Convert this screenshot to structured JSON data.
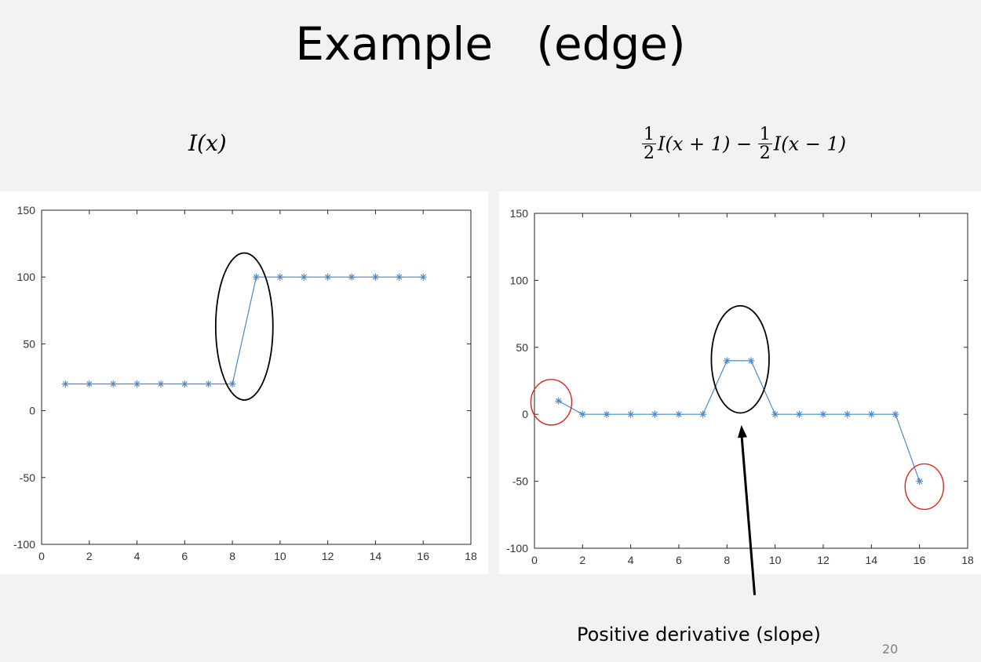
{
  "slide": {
    "title": "Example   (edge)",
    "formula_left": "I(x)",
    "formula_right": {
      "frac_num": "1",
      "frac_den": "2",
      "term1": "I(x + 1) − ",
      "term2": "I(x − 1)"
    },
    "annotation": "Positive derivative (slope)",
    "page_number": "20"
  },
  "colors": {
    "series": "#4a8ac7",
    "circle_black": "#000000",
    "circle_red": "#d9261c"
  },
  "chart_data": [
    {
      "type": "line",
      "marker": "asterisk",
      "x": [
        1,
        2,
        3,
        4,
        5,
        6,
        7,
        8,
        9,
        10,
        11,
        12,
        13,
        14,
        15,
        16
      ],
      "series": [
        {
          "values": [
            20,
            20,
            20,
            20,
            20,
            20,
            20,
            20,
            100,
            100,
            100,
            100,
            100,
            100,
            100,
            100
          ]
        }
      ],
      "xlim": [
        0,
        18
      ],
      "ylim": [
        -100,
        150
      ],
      "xticks": [
        "0",
        "2",
        "4",
        "6",
        "8",
        "10",
        "12",
        "14",
        "16",
        "18"
      ],
      "yticks": [
        "-100",
        "-50",
        "0",
        "50",
        "100",
        "150"
      ],
      "grid": false,
      "annotations": [
        {
          "shape": "ellipse",
          "color": "black",
          "cx": 8.5,
          "cy": 63,
          "rx": 1.2,
          "ry": 55
        }
      ]
    },
    {
      "type": "line",
      "marker": "asterisk",
      "x": [
        1,
        2,
        3,
        4,
        5,
        6,
        7,
        8,
        9,
        10,
        11,
        12,
        13,
        14,
        15,
        16
      ],
      "series": [
        {
          "values": [
            10,
            0,
            0,
            0,
            0,
            0,
            0,
            40,
            40,
            0,
            0,
            0,
            0,
            0,
            0,
            -50
          ]
        }
      ],
      "xlim": [
        0,
        18
      ],
      "ylim": [
        -100,
        150
      ],
      "xticks": [
        "0",
        "2",
        "4",
        "6",
        "8",
        "10",
        "12",
        "14",
        "16",
        "18"
      ],
      "yticks": [
        "-100",
        "-50",
        "0",
        "50",
        "100",
        "150"
      ],
      "grid": false,
      "annotations": [
        {
          "shape": "ellipse",
          "color": "black",
          "cx": 8.55,
          "cy": 41,
          "rx": 1.2,
          "ry": 40
        },
        {
          "shape": "ellipse",
          "color": "red",
          "cx": 0.7,
          "cy": 9,
          "rx": 0.85,
          "ry": 17
        },
        {
          "shape": "ellipse",
          "color": "red",
          "cx": 16.2,
          "cy": -54,
          "rx": 0.8,
          "ry": 17
        },
        {
          "shape": "arrow",
          "color": "black",
          "from_x": 9.15,
          "from_y": -135,
          "to_x": 8.6,
          "to_y": -8
        }
      ]
    }
  ]
}
